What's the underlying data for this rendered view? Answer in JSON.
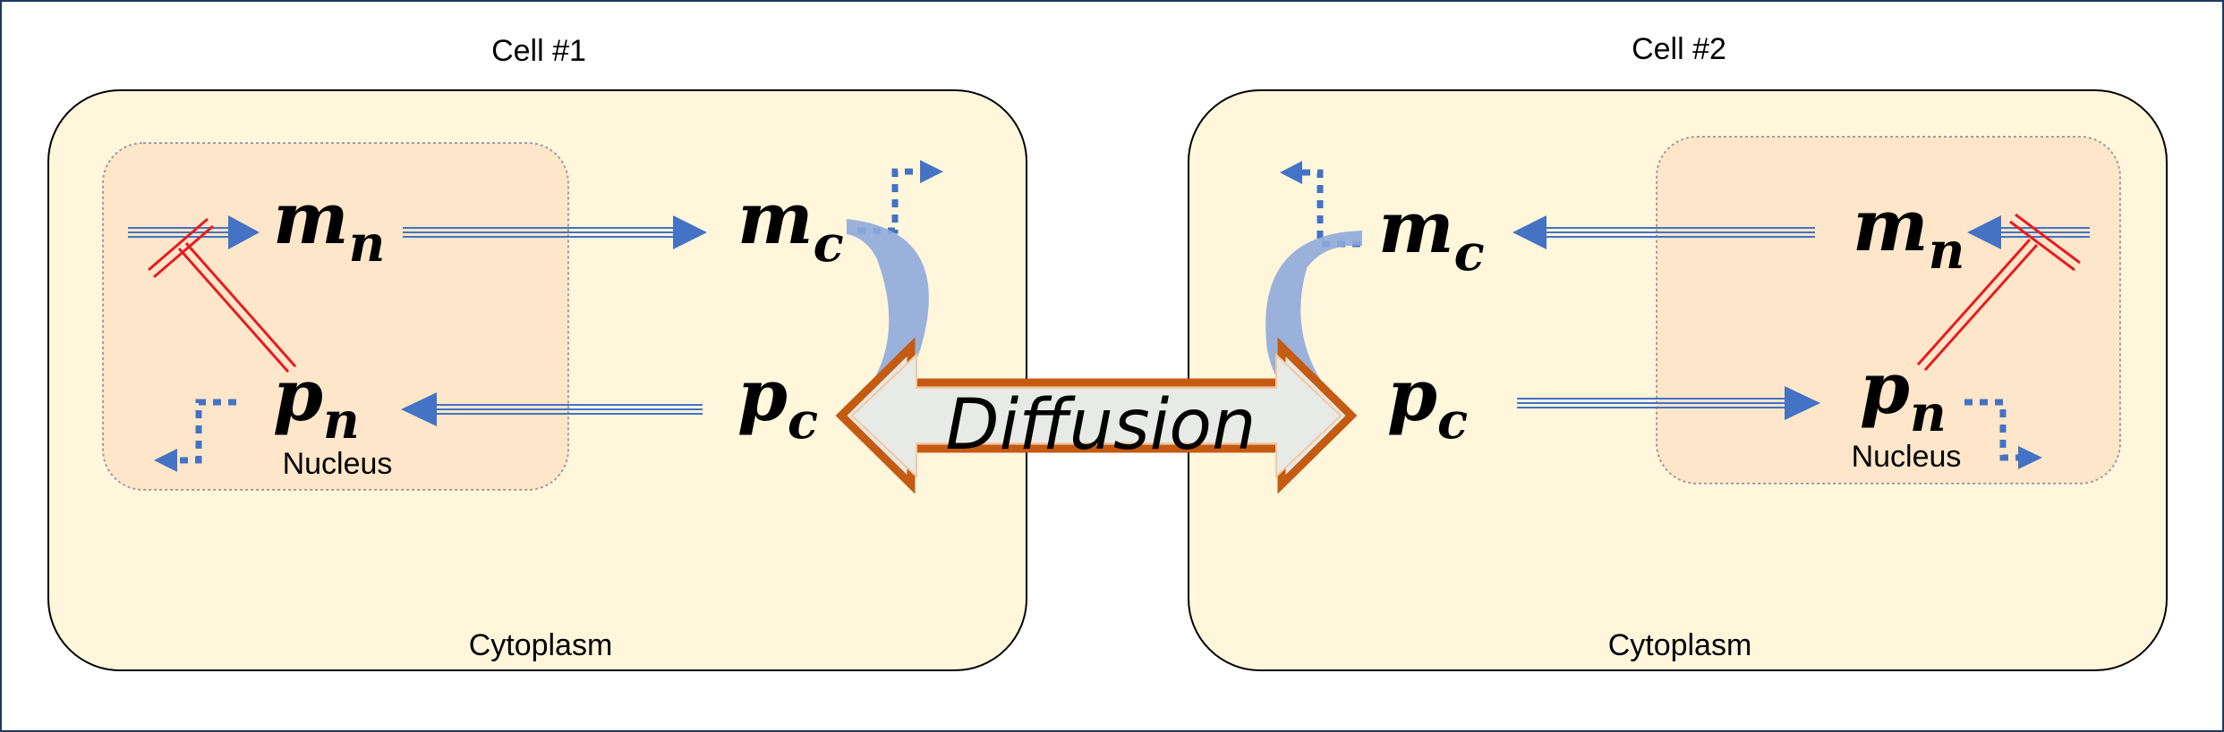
{
  "cell1": {
    "title": "Cell #1",
    "cytoplasm": "Cytoplasm",
    "nucleus": "Nucleus"
  },
  "cell2": {
    "title": "Cell #2",
    "cytoplasm": "Cytoplasm",
    "nucleus": "Nucleus"
  },
  "species": {
    "m": "m",
    "p": "p",
    "n_sub": "n",
    "c_sub": "c"
  },
  "diffusion": "Diffusion",
  "colors": {
    "cytoplasm_fill": "#fff6dc",
    "nucleus_fill": "#fde6c9",
    "arrow_blue": "#4472c4",
    "inhibit_red": "#e51c23",
    "diffusion_fill": "#e6e8e6",
    "diffusion_border": "#c55a11",
    "curve_blue": "#8faadc"
  }
}
